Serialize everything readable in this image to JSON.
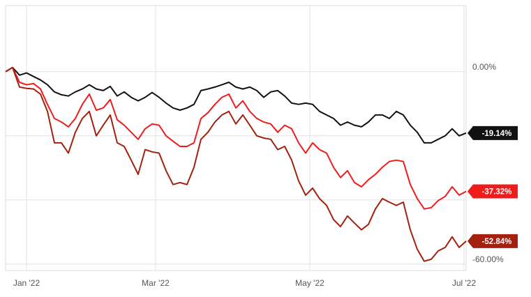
{
  "chart_data": {
    "type": "line",
    "xlim": [
      0,
      66
    ],
    "xticks": [
      {
        "value": 3,
        "label": "Jan '22"
      },
      {
        "value": 21.5,
        "label": "Mar '22"
      },
      {
        "value": 43.6,
        "label": "May '22"
      },
      {
        "value": 65.7,
        "label": "Jul '22"
      }
    ],
    "ylim": [
      -62,
      20.6
    ],
    "yticks": [
      {
        "value": 0,
        "label": "0.00%"
      },
      {
        "value": -20
      },
      {
        "value": -40
      },
      {
        "value": -60,
        "label": "-60.00%"
      }
    ],
    "grid": true,
    "series": [
      {
        "color": "#111111",
        "end_label": "-19.14%",
        "values": [
          0,
          1.3,
          -1.1,
          -0.4,
          -1.5,
          -2.6,
          -4.1,
          -6.3,
          -7.2,
          -7.6,
          -6.3,
          -5.4,
          -4.1,
          -5.4,
          -5.9,
          -4.6,
          -7.6,
          -6.3,
          -8.0,
          -9.1,
          -8.0,
          -6.5,
          -8.0,
          -9.8,
          -11.3,
          -12.0,
          -11.3,
          -10.2,
          -5.9,
          -5.4,
          -4.8,
          -4.1,
          -3.3,
          -4.8,
          -5.4,
          -4.8,
          -5.9,
          -8.0,
          -6.3,
          -5.9,
          -7.6,
          -9.8,
          -10.2,
          -9.8,
          -10.2,
          -12.4,
          -13.5,
          -14.6,
          -16.7,
          -15.7,
          -16.7,
          -17.2,
          -15.7,
          -13.5,
          -13.5,
          -14.6,
          -12.4,
          -13.5,
          -16.7,
          -18.9,
          -22.2,
          -22.2,
          -21.1,
          -20.0,
          -17.8,
          -20.0,
          -19.14
        ]
      },
      {
        "color": "#f01b1b",
        "end_label": "-37.32%",
        "values": [
          0,
          1.3,
          -3.3,
          -4.1,
          -3.7,
          -5.4,
          -10.2,
          -14.6,
          -15.7,
          -17.2,
          -14.6,
          -10.2,
          -7.0,
          -12.0,
          -11.3,
          -8.7,
          -15.0,
          -16.7,
          -18.9,
          -21.1,
          -17.8,
          -16.3,
          -16.7,
          -20.0,
          -21.7,
          -23.3,
          -23.3,
          -22.2,
          -14.6,
          -12.8,
          -10.2,
          -8.0,
          -7.0,
          -11.3,
          -9.1,
          -12.4,
          -14.6,
          -15.7,
          -16.3,
          -18.9,
          -16.7,
          -17.8,
          -22.2,
          -25.4,
          -22.2,
          -24.3,
          -25.4,
          -29.8,
          -33.0,
          -30.9,
          -34.6,
          -35.9,
          -33.7,
          -32.0,
          -29.8,
          -28.0,
          -27.6,
          -28.0,
          -35.2,
          -39.6,
          -42.8,
          -42.4,
          -40.2,
          -38.9,
          -35.9,
          -38.5,
          -37.32
        ]
      },
      {
        "color": "#a3200e",
        "end_label": "-52.84%",
        "values": [
          0,
          1.3,
          -4.8,
          -5.2,
          -5.4,
          -7.0,
          -12.4,
          -22.2,
          -22.2,
          -25.4,
          -18.9,
          -14.6,
          -12.4,
          -20.0,
          -16.7,
          -13.5,
          -22.2,
          -23.3,
          -27.6,
          -32.0,
          -24.3,
          -25.0,
          -25.4,
          -30.9,
          -35.2,
          -34.6,
          -35.2,
          -29.8,
          -21.1,
          -18.9,
          -15.7,
          -13.5,
          -12.4,
          -16.3,
          -13.5,
          -16.7,
          -20.0,
          -20.7,
          -21.1,
          -24.3,
          -23.3,
          -27.6,
          -34.1,
          -38.5,
          -36.3,
          -39.6,
          -41.7,
          -46.1,
          -48.3,
          -45.0,
          -47.2,
          -49.3,
          -47.6,
          -42.8,
          -39.6,
          -40.7,
          -41.7,
          -40.7,
          -49.3,
          -55.4,
          -59.1,
          -58.5,
          -55.9,
          -54.8,
          -51.5,
          -54.8,
          -52.84
        ]
      }
    ]
  }
}
